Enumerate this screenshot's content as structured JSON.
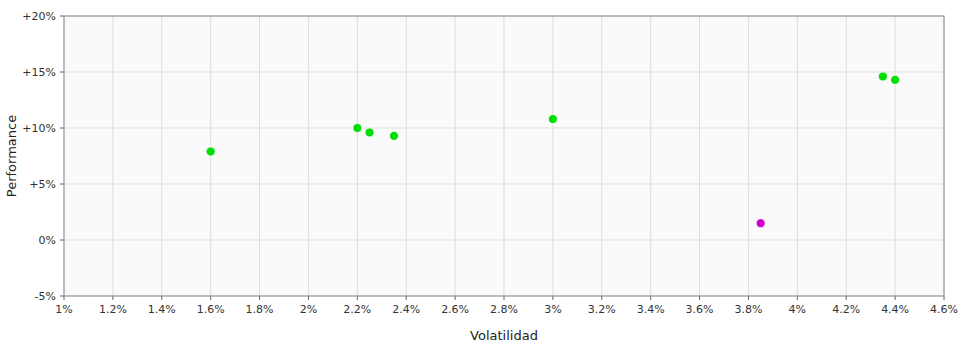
{
  "chart_data": {
    "type": "scatter",
    "xlabel": "Volatilidad",
    "ylabel": "Performance",
    "xlim": [
      0.01,
      0.046
    ],
    "ylim": [
      -0.05,
      0.2
    ],
    "xticks": [
      {
        "value": 0.01,
        "label": "1%"
      },
      {
        "value": 0.012,
        "label": "1.2%"
      },
      {
        "value": 0.014,
        "label": "1.4%"
      },
      {
        "value": 0.016,
        "label": "1.6%"
      },
      {
        "value": 0.018,
        "label": "1.8%"
      },
      {
        "value": 0.02,
        "label": "2%"
      },
      {
        "value": 0.022,
        "label": "2.2%"
      },
      {
        "value": 0.024,
        "label": "2.4%"
      },
      {
        "value": 0.026,
        "label": "2.6%"
      },
      {
        "value": 0.028,
        "label": "2.8%"
      },
      {
        "value": 0.03,
        "label": "3%"
      },
      {
        "value": 0.032,
        "label": "3.2%"
      },
      {
        "value": 0.034,
        "label": "3.4%"
      },
      {
        "value": 0.036,
        "label": "3.6%"
      },
      {
        "value": 0.038,
        "label": "3.8%"
      },
      {
        "value": 0.04,
        "label": "4%"
      },
      {
        "value": 0.042,
        "label": "4.2%"
      },
      {
        "value": 0.044,
        "label": "4.4%"
      },
      {
        "value": 0.046,
        "label": "4.6%"
      }
    ],
    "yticks": [
      {
        "value": -0.05,
        "label": "-5%"
      },
      {
        "value": 0.0,
        "label": "0%"
      },
      {
        "value": 0.05,
        "label": "+5%"
      },
      {
        "value": 0.1,
        "label": "+10%"
      },
      {
        "value": 0.15,
        "label": "+15%"
      },
      {
        "value": 0.2,
        "label": "+20%"
      }
    ],
    "grid": true,
    "series": [
      {
        "color": "#00dd00",
        "marker": "circle",
        "x": [
          0.016,
          0.022,
          0.0225,
          0.0235,
          0.03,
          0.0435,
          0.044
        ],
        "values": [
          0.079,
          0.1,
          0.096,
          0.093,
          0.108,
          0.146,
          0.143
        ]
      },
      {
        "color": "#cc00cc",
        "marker": "circle",
        "x": [
          0.0385
        ],
        "values": [
          0.015
        ]
      }
    ]
  }
}
